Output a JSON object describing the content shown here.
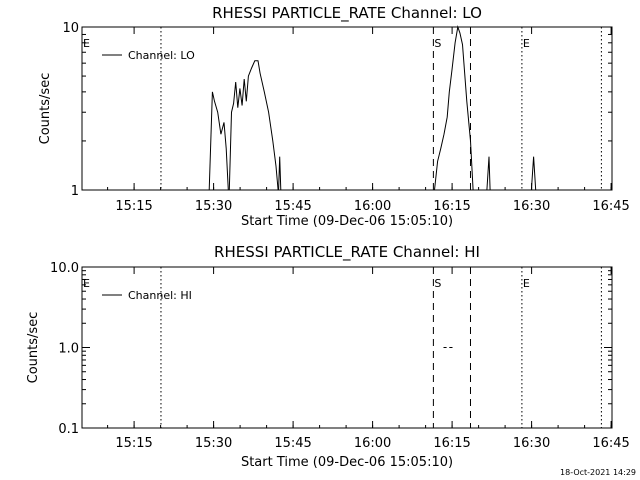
{
  "footer": {
    "timestamp": "18-Oct-2021 14:29"
  },
  "chart_data": [
    {
      "type": "line",
      "title": "RHESSI PARTICLE_RATE Channel: LO",
      "xlabel": "Start Time (09-Dec-06 15:05:10)",
      "ylabel": "Counts/sec",
      "x_unit": "minutes after 15:05:10",
      "xlim": [
        0,
        100
      ],
      "x_ticks": [
        {
          "x": 9.83,
          "label": "15:15"
        },
        {
          "x": 24.83,
          "label": "15:30"
        },
        {
          "x": 39.83,
          "label": "15:45"
        },
        {
          "x": 54.83,
          "label": "16:00"
        },
        {
          "x": 69.83,
          "label": "16:15"
        },
        {
          "x": 84.83,
          "label": "16:30"
        },
        {
          "x": 99.83,
          "label": "16:45"
        }
      ],
      "y_scale": "log",
      "ylim": [
        1,
        10
      ],
      "y_ticks": [
        {
          "y": 1,
          "label": "1"
        },
        {
          "y": 10,
          "label": "10"
        }
      ],
      "legend": {
        "position": "top-left",
        "entries": [
          "Channel: LO"
        ]
      },
      "grid": false,
      "series": [
        {
          "name": "Channel: LO",
          "segments": [
            [
              [
                24.0,
                1.0
              ],
              [
                24.6,
                4.0
              ],
              [
                25.0,
                3.5
              ],
              [
                25.6,
                3.0
              ],
              [
                26.2,
                2.2
              ],
              [
                26.8,
                2.6
              ],
              [
                27.2,
                1.8
              ],
              [
                27.6,
                1.0
              ]
            ],
            [
              [
                27.8,
                1.0
              ],
              [
                28.2,
                3.0
              ],
              [
                28.6,
                3.4
              ],
              [
                29.0,
                4.6
              ],
              [
                29.4,
                3.2
              ],
              [
                29.8,
                4.2
              ],
              [
                30.2,
                3.3
              ],
              [
                30.6,
                4.8
              ],
              [
                31.0,
                3.5
              ],
              [
                31.4,
                5.0
              ],
              [
                32.0,
                5.6
              ],
              [
                32.6,
                6.2
              ],
              [
                33.2,
                6.2
              ],
              [
                33.6,
                5.2
              ],
              [
                34.4,
                4.0
              ],
              [
                35.2,
                3.0
              ],
              [
                36.0,
                2.0
              ],
              [
                36.6,
                1.4
              ],
              [
                37.0,
                1.0
              ]
            ],
            [
              [
                37.1,
                1.0
              ],
              [
                37.3,
                1.6
              ],
              [
                37.5,
                1.0
              ]
            ],
            [
              [
                66.5,
                1.0
              ],
              [
                67.1,
                1.5
              ],
              [
                67.7,
                1.8
              ],
              [
                68.3,
                2.2
              ],
              [
                68.9,
                2.8
              ],
              [
                69.3,
                4.0
              ],
              [
                69.8,
                5.4
              ],
              [
                70.4,
                8.0
              ],
              [
                70.9,
                10.0
              ],
              [
                71.3,
                9.2
              ],
              [
                71.8,
                7.8
              ],
              [
                72.6,
                3.5
              ],
              [
                73.3,
                2.0
              ],
              [
                73.8,
                1.0
              ]
            ],
            [
              [
                76.4,
                1.0
              ],
              [
                76.8,
                1.6
              ],
              [
                77.0,
                1.0
              ]
            ],
            [
              [
                84.8,
                1.0
              ],
              [
                85.2,
                1.6
              ],
              [
                85.6,
                1.0
              ]
            ]
          ]
        }
      ],
      "event_lines": [
        {
          "x": 14.9,
          "style": "dotted",
          "label": ""
        },
        {
          "x": 66.3,
          "style": "dashed",
          "label": "S"
        },
        {
          "x": 73.3,
          "style": "dashed",
          "label": ""
        },
        {
          "x": 83.0,
          "style": "dotted",
          "label": "E"
        },
        {
          "x": 98.0,
          "style": "dotted",
          "label": ""
        }
      ],
      "corner_labels": [
        "E"
      ]
    },
    {
      "type": "line",
      "title": "RHESSI PARTICLE_RATE Channel: HI",
      "xlabel": "Start Time (09-Dec-06 15:05:10)",
      "ylabel": "Counts/sec",
      "x_unit": "minutes after 15:05:10",
      "xlim": [
        0,
        100
      ],
      "x_ticks": [
        {
          "x": 9.83,
          "label": "15:15"
        },
        {
          "x": 24.83,
          "label": "15:30"
        },
        {
          "x": 39.83,
          "label": "15:45"
        },
        {
          "x": 54.83,
          "label": "16:00"
        },
        {
          "x": 69.83,
          "label": "16:15"
        },
        {
          "x": 84.83,
          "label": "16:30"
        },
        {
          "x": 99.83,
          "label": "16:45"
        }
      ],
      "y_scale": "log",
      "ylim": [
        0.1,
        10
      ],
      "y_ticks": [
        {
          "y": 0.1,
          "label": "0.1"
        },
        {
          "y": 1,
          "label": "1.0"
        },
        {
          "y": 10,
          "label": "10.0"
        }
      ],
      "legend": {
        "position": "top-left",
        "entries": [
          "Channel: HI"
        ]
      },
      "grid": false,
      "series": [
        {
          "name": "Channel: HI",
          "segments": [
            [
              [
                68.2,
                1.0
              ],
              [
                68.8,
                1.0
              ]
            ],
            [
              [
                69.3,
                1.0
              ],
              [
                69.9,
                1.0
              ]
            ]
          ]
        }
      ],
      "event_lines": [
        {
          "x": 14.9,
          "style": "dotted",
          "label": ""
        },
        {
          "x": 66.3,
          "style": "dashed",
          "label": "S"
        },
        {
          "x": 73.3,
          "style": "dashed",
          "label": ""
        },
        {
          "x": 83.0,
          "style": "dotted",
          "label": "E"
        },
        {
          "x": 98.0,
          "style": "dotted",
          "label": ""
        }
      ],
      "corner_labels": [
        "E"
      ]
    }
  ]
}
